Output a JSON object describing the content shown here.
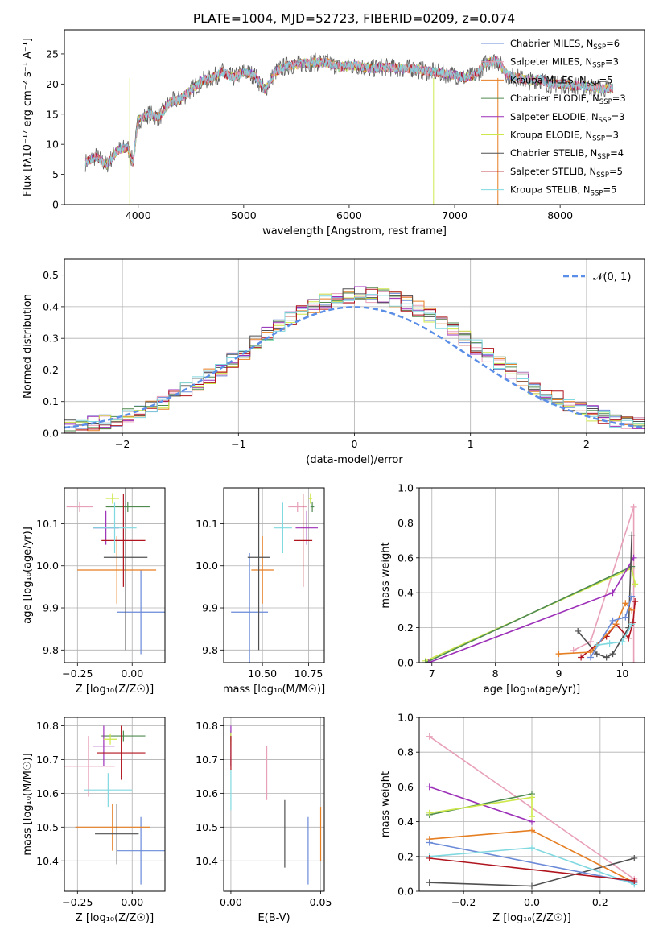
{
  "title": "PLATE=1004, MJD=52723, FIBERID=0209, z=0.074",
  "colors": {
    "chabrier_miles": "#6a8ad8",
    "salpeter_miles": "#e8a0b8",
    "kroupa_miles": "#e67e22",
    "chabrier_elodie": "#4f8a4f",
    "salpeter_elodie": "#9c2fb8",
    "kroupa_elodie": "#cde84a",
    "chabrier_stelib": "#505050",
    "salpeter_stelib": "#b0141e",
    "kroupa_stelib": "#80d8e0"
  },
  "chart_data": [
    {
      "id": "spectrum",
      "type": "line",
      "xlabel": "wavelength [Angstrom, rest frame]",
      "ylabel": "Flux [fλ10⁻¹⁷ erg cm⁻² s⁻¹ A⁻¹]",
      "xlim": [
        3300,
        8800
      ],
      "ylim": [
        0,
        29
      ],
      "xticks": [
        "4000",
        "5000",
        "6000",
        "7000",
        "8000"
      ],
      "yticks": [
        "0",
        "5",
        "10",
        "15",
        "20",
        "25"
      ],
      "legend_position": "right",
      "spectrum_points": [
        [
          3500,
          7
        ],
        [
          3600,
          8
        ],
        [
          3700,
          6.5
        ],
        [
          3800,
          9
        ],
        [
          3900,
          9.5
        ],
        [
          3950,
          7
        ],
        [
          4000,
          14
        ],
        [
          4100,
          15
        ],
        [
          4200,
          14.5
        ],
        [
          4300,
          17
        ],
        [
          4400,
          17.5
        ],
        [
          4500,
          19
        ],
        [
          4600,
          20.5
        ],
        [
          4700,
          21
        ],
        [
          4800,
          22
        ],
        [
          4900,
          21
        ],
        [
          5000,
          22
        ],
        [
          5100,
          21.5
        ],
        [
          5200,
          19
        ],
        [
          5300,
          22
        ],
        [
          5400,
          23
        ],
        [
          5500,
          23.2
        ],
        [
          5600,
          23.5
        ],
        [
          5700,
          23.6
        ],
        [
          5800,
          23.5
        ],
        [
          5900,
          22.8
        ],
        [
          6000,
          23
        ],
        [
          6100,
          23
        ],
        [
          6200,
          22.5
        ],
        [
          6300,
          22.8
        ],
        [
          6400,
          22.7
        ],
        [
          6500,
          22.5
        ],
        [
          6600,
          22.6
        ],
        [
          6700,
          22.2
        ],
        [
          6800,
          22
        ],
        [
          6900,
          21.7
        ],
        [
          7000,
          21.5
        ],
        [
          7100,
          21
        ],
        [
          7200,
          21.5
        ],
        [
          7300,
          23.5
        ],
        [
          7400,
          24
        ],
        [
          7500,
          21.5
        ],
        [
          7600,
          21
        ],
        [
          7700,
          20.5
        ],
        [
          7800,
          20.8
        ],
        [
          7900,
          20
        ],
        [
          8000,
          20
        ],
        [
          8100,
          19.8
        ],
        [
          8200,
          19.7
        ],
        [
          8300,
          19.5
        ],
        [
          8400,
          19.2
        ],
        [
          8500,
          19.3
        ]
      ],
      "series": [
        {
          "name": "Chabrier MILES",
          "nssp": "6",
          "color_key": "chabrier_miles"
        },
        {
          "name": "Salpeter MILES",
          "nssp": "3",
          "color_key": "salpeter_miles"
        },
        {
          "name": "Kroupa MILES",
          "nssp": "5",
          "color_key": "kroupa_miles"
        },
        {
          "name": "Chabrier ELODIE",
          "nssp": "3",
          "color_key": "chabrier_elodie"
        },
        {
          "name": "Salpeter ELODIE",
          "nssp": "3",
          "color_key": "salpeter_elodie"
        },
        {
          "name": "Kroupa ELODIE",
          "nssp": "3",
          "color_key": "kroupa_elodie"
        },
        {
          "name": "Chabrier STELIB",
          "nssp": "4",
          "color_key": "chabrier_stelib"
        },
        {
          "name": "Salpeter STELIB",
          "nssp": "5",
          "color_key": "salpeter_stelib"
        },
        {
          "name": "Kroupa STELIB",
          "nssp": "5",
          "color_key": "kroupa_stelib"
        }
      ]
    },
    {
      "id": "residuals",
      "type": "line",
      "xlabel": "(data-model)/error",
      "ylabel": "Normed distribution",
      "xlim": [
        -2.5,
        2.5
      ],
      "ylim": [
        0,
        0.55
      ],
      "xticks": [
        "−2",
        "−1",
        "0",
        "1",
        "2"
      ],
      "yticks": [
        "0.0",
        "0.1",
        "0.2",
        "0.3",
        "0.4",
        "0.5"
      ],
      "grid": true,
      "legend": "𝒩(0, 1)",
      "legend_position": "top-right",
      "bin_width": 0.1,
      "bins_start": -2.5,
      "bins_end": 2.5
    },
    {
      "id": "age_vs_Z",
      "type": "scatter",
      "xlabel": "Z [log₁₀(Z/Z☉)]",
      "ylabel": "age  [log₁₀(age/yr)]",
      "xlim": [
        -0.31,
        0.15
      ],
      "ylim": [
        9.77,
        10.185
      ],
      "xticks": [
        "−0.25",
        "0.00"
      ],
      "yticks": [
        "9.8",
        "9.9",
        "10.0",
        "10.1"
      ],
      "grid": true,
      "points": [
        {
          "color_key": "chabrier_miles",
          "x": 0.04,
          "xerr": 0.11,
          "y": 9.89,
          "yerr": 0.1
        },
        {
          "color_key": "salpeter_miles",
          "x": -0.24,
          "xerr": 0.06,
          "y": 10.14,
          "yerr": 0.0
        },
        {
          "color_key": "kroupa_miles",
          "x": -0.07,
          "xerr": 0.18,
          "y": 9.99,
          "yerr": 0.08
        },
        {
          "color_key": "chabrier_elodie",
          "x": -0.02,
          "xerr": 0.1,
          "y": 10.14,
          "yerr": 0.0
        },
        {
          "color_key": "salpeter_elodie",
          "x": -0.12,
          "xerr": 0.06,
          "y": 10.09,
          "yerr": 0.04
        },
        {
          "color_key": "kroupa_elodie",
          "x": -0.09,
          "xerr": 0.03,
          "y": 10.16,
          "yerr": 0.0
        },
        {
          "color_key": "chabrier_stelib",
          "x": -0.03,
          "xerr": 0.1,
          "y": 10.02,
          "yerr": 0.22
        },
        {
          "color_key": "salpeter_stelib",
          "x": -0.04,
          "xerr": 0.1,
          "y": 10.06,
          "yerr": 0.11
        },
        {
          "color_key": "kroupa_stelib",
          "x": -0.08,
          "xerr": 0.1,
          "y": 10.09,
          "yerr": 0.06
        }
      ]
    },
    {
      "id": "age_vs_mass",
      "type": "scatter",
      "xlabel": "mass [log₁₀(M/M☉)]",
      "ylabel": "",
      "xlim": [
        10.29,
        10.835
      ],
      "ylim": [
        9.77,
        10.185
      ],
      "xticks": [
        "10.50",
        "10.75"
      ],
      "yticks": [
        "9.8",
        "9.9",
        "10.0",
        "10.1"
      ],
      "grid": true,
      "points": [
        {
          "color_key": "chabrier_miles",
          "x": 10.43,
          "xerr": 0.1,
          "y": 9.89,
          "yerr": 0.14
        },
        {
          "color_key": "salpeter_miles",
          "x": 10.69,
          "xerr": 0.05,
          "y": 10.14,
          "yerr": 0.0
        },
        {
          "color_key": "kroupa_miles",
          "x": 10.5,
          "xerr": 0.06,
          "y": 9.99,
          "yerr": 0.08
        },
        {
          "color_key": "chabrier_elodie",
          "x": 10.77,
          "xerr": 0.01,
          "y": 10.14,
          "yerr": 0.0
        },
        {
          "color_key": "salpeter_elodie",
          "x": 10.74,
          "xerr": 0.06,
          "y": 10.09,
          "yerr": 0.04
        },
        {
          "color_key": "kroupa_elodie",
          "x": 10.76,
          "xerr": 0.01,
          "y": 10.16,
          "yerr": 0.0
        },
        {
          "color_key": "chabrier_stelib",
          "x": 10.48,
          "xerr": 0.06,
          "y": 10.02,
          "yerr": 0.22
        },
        {
          "color_key": "salpeter_stelib",
          "x": 10.72,
          "xerr": 0.05,
          "y": 10.06,
          "yerr": 0.11
        },
        {
          "color_key": "kroupa_stelib",
          "x": 10.61,
          "xerr": 0.05,
          "y": 10.09,
          "yerr": 0.06
        }
      ]
    },
    {
      "id": "weight_vs_age",
      "type": "line",
      "xlabel": "age  [log₁₀(age/yr)]",
      "ylabel": "mass weight",
      "xlim": [
        6.8,
        10.35
      ],
      "ylim": [
        0,
        1
      ],
      "xticks": [
        "7",
        "8",
        "9",
        "10"
      ],
      "yticks": [
        "0.0",
        "0.2",
        "0.4",
        "0.6",
        "0.8",
        "1.0"
      ],
      "grid": true,
      "series": [
        {
          "color_key": "salpeter_miles",
          "x": [
            9.23,
            9.5,
            10.18,
            10.18
          ],
          "y": [
            0.07,
            0.12,
            0.89,
            0.0
          ]
        },
        {
          "color_key": "kroupa_elodie",
          "x": [
            6.9,
            10.15,
            10.2
          ],
          "y": [
            0.01,
            0.54,
            0.45
          ]
        },
        {
          "color_key": "chabrier_elodie",
          "x": [
            6.9,
            10.15
          ],
          "y": [
            0.0,
            0.55
          ]
        },
        {
          "color_key": "salpeter_elodie",
          "x": [
            6.95,
            9.85,
            10.18
          ],
          "y": [
            0.0,
            0.4,
            0.6
          ]
        },
        {
          "color_key": "chabrier_stelib",
          "x": [
            9.3,
            9.6,
            9.75,
            9.85,
            10.1,
            10.15
          ],
          "y": [
            0.18,
            0.05,
            0.03,
            0.05,
            0.2,
            0.73
          ]
        },
        {
          "color_key": "salpeter_stelib",
          "x": [
            9.35,
            9.75,
            9.9,
            10.1,
            10.17,
            10.2
          ],
          "y": [
            0.03,
            0.15,
            0.22,
            0.14,
            0.23,
            0.35
          ]
        },
        {
          "color_key": "kroupa_miles",
          "x": [
            9.0,
            9.5,
            9.9,
            10.05,
            10.15
          ],
          "y": [
            0.05,
            0.06,
            0.22,
            0.34,
            0.3
          ]
        },
        {
          "color_key": "chabrier_miles",
          "x": [
            9.5,
            9.85,
            10.05,
            10.15
          ],
          "y": [
            0.03,
            0.24,
            0.26,
            0.38
          ]
        },
        {
          "color_key": "kroupa_stelib",
          "x": [
            9.6,
            9.8,
            10.0,
            10.15
          ],
          "y": [
            0.1,
            0.11,
            0.12,
            0.22
          ]
        }
      ]
    },
    {
      "id": "mass_vs_Z",
      "type": "scatter",
      "xlabel": "Z [log₁₀(Z/Z☉)]",
      "ylabel": "mass [log₁₀(M/M☉)]",
      "xlim": [
        -0.31,
        0.15
      ],
      "ylim": [
        10.31,
        10.825
      ],
      "xticks": [
        "−0.25",
        "0.00"
      ],
      "yticks": [
        "10.4",
        "10.5",
        "10.6",
        "10.7",
        "10.8"
      ],
      "grid": true,
      "points": [
        {
          "color_key": "chabrier_miles",
          "x": 0.04,
          "xerr": 0.11,
          "y": 10.43,
          "yerr": 0.1
        },
        {
          "color_key": "salpeter_miles",
          "x": -0.2,
          "xerr": 0.12,
          "y": 10.68,
          "yerr": 0.09
        },
        {
          "color_key": "kroupa_miles",
          "x": -0.09,
          "xerr": 0.17,
          "y": 10.5,
          "yerr": 0.07
        },
        {
          "color_key": "chabrier_elodie",
          "x": -0.04,
          "xerr": 0.1,
          "y": 10.77,
          "yerr": 0.0
        },
        {
          "color_key": "salpeter_elodie",
          "x": -0.13,
          "xerr": 0.05,
          "y": 10.74,
          "yerr": 0.06
        },
        {
          "color_key": "kroupa_elodie",
          "x": -0.1,
          "xerr": 0.03,
          "y": 10.76,
          "yerr": 0.0
        },
        {
          "color_key": "chabrier_stelib",
          "x": -0.07,
          "xerr": 0.1,
          "y": 10.48,
          "yerr": 0.09
        },
        {
          "color_key": "salpeter_stelib",
          "x": -0.05,
          "xerr": 0.11,
          "y": 10.72,
          "yerr": 0.08
        },
        {
          "color_key": "kroupa_stelib",
          "x": -0.11,
          "xerr": 0.11,
          "y": 10.61,
          "yerr": 0.05
        }
      ]
    },
    {
      "id": "mass_vs_ebv",
      "type": "scatter",
      "xlabel": "E(B-V)",
      "ylabel": "",
      "xlim": [
        -0.004,
        0.052
      ],
      "ylim": [
        10.31,
        10.825
      ],
      "xticks": [
        "0.00",
        "0.05"
      ],
      "yticks": [
        "10.4",
        "10.5",
        "10.6",
        "10.7",
        "10.8"
      ],
      "grid": true,
      "points": [
        {
          "color_key": "chabrier_miles",
          "x": 0.043,
          "xerr": 0.0,
          "y": 10.43,
          "yerr": 0.1
        },
        {
          "color_key": "salpeter_miles",
          "x": 0.02,
          "xerr": 0.0,
          "y": 10.66,
          "yerr": 0.08
        },
        {
          "color_key": "kroupa_miles",
          "x": 0.05,
          "xerr": 0.0,
          "y": 10.48,
          "yerr": 0.08
        },
        {
          "color_key": "chabrier_elodie",
          "x": 0.0,
          "xerr": 0.0,
          "y": 10.77,
          "yerr": 0.0
        },
        {
          "color_key": "salpeter_elodie",
          "x": 0.0,
          "xerr": 0.0,
          "y": 10.74,
          "yerr": 0.06
        },
        {
          "color_key": "kroupa_elodie",
          "x": 0.0,
          "xerr": 0.0,
          "y": 10.76,
          "yerr": 0.02
        },
        {
          "color_key": "chabrier_stelib",
          "x": 0.03,
          "xerr": 0.0,
          "y": 10.48,
          "yerr": 0.1
        },
        {
          "color_key": "salpeter_stelib",
          "x": 0.0,
          "xerr": 0.0,
          "y": 10.72,
          "yerr": 0.05
        },
        {
          "color_key": "kroupa_stelib",
          "x": 0.0,
          "xerr": 0.0,
          "y": 10.61,
          "yerr": 0.06
        }
      ]
    },
    {
      "id": "weight_vs_Z",
      "type": "line",
      "xlabel": "Z [log₁₀(Z/Z☉)]",
      "ylabel": "mass weight",
      "xlim": [
        -0.33,
        0.33
      ],
      "ylim": [
        0,
        1
      ],
      "xticks": [
        "−0.2",
        "0.0",
        "0.2"
      ],
      "yticks": [
        "0.0",
        "0.2",
        "0.4",
        "0.6",
        "0.8",
        "1.0"
      ],
      "grid": true,
      "series": [
        {
          "color_key": "salpeter_miles",
          "x": [
            -0.3,
            0.3
          ],
          "y": [
            0.89,
            0.07
          ]
        },
        {
          "color_key": "chabrier_stelib",
          "x": [
            -0.3,
            0.0,
            0.3
          ],
          "y": [
            0.05,
            0.03,
            0.19
          ]
        },
        {
          "color_key": "salpeter_elodie",
          "x": [
            -0.3,
            0.0
          ],
          "y": [
            0.6,
            0.4
          ]
        },
        {
          "color_key": "chabrier_elodie",
          "x": [
            -0.3,
            0.0
          ],
          "y": [
            0.44,
            0.56
          ]
        },
        {
          "color_key": "kroupa_elodie",
          "x": [
            -0.3,
            0.0,
            0.0
          ],
          "y": [
            0.45,
            0.54,
            0.43
          ]
        },
        {
          "color_key": "kroupa_miles",
          "x": [
            -0.3,
            0.0,
            0.3
          ],
          "y": [
            0.3,
            0.35,
            0.05
          ]
        },
        {
          "color_key": "chabrier_miles",
          "x": [
            -0.3,
            0.3
          ],
          "y": [
            0.28,
            0.05
          ]
        },
        {
          "color_key": "kroupa_stelib",
          "x": [
            -0.3,
            0.0,
            0.3
          ],
          "y": [
            0.2,
            0.25,
            0.04
          ]
        },
        {
          "color_key": "salpeter_stelib",
          "x": [
            -0.3,
            0.3
          ],
          "y": [
            0.19,
            0.06
          ]
        }
      ]
    }
  ]
}
